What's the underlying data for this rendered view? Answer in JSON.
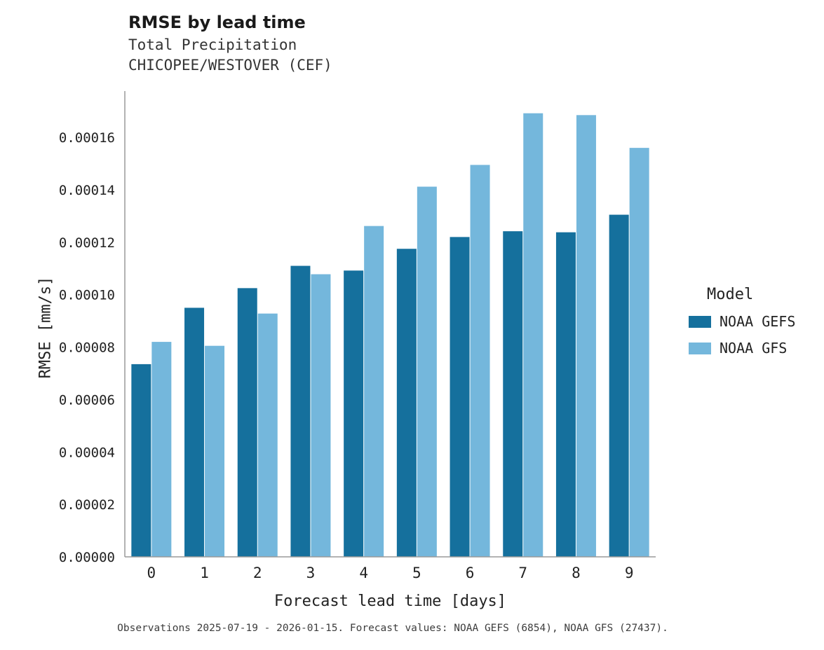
{
  "header": {
    "title": "RMSE by lead time",
    "subtitle1": "Total Precipitation",
    "subtitle2": "CHICOPEE/WESTOVER (CEF)"
  },
  "caption": "Observations 2025-07-19 - 2026-01-15. Forecast values: NOAA GEFS (6854), NOAA GFS (27437).",
  "legend": {
    "title": "Model",
    "items": [
      {
        "label": "NOAA GEFS",
        "color": "#15709d"
      },
      {
        "label": "NOAA GFS",
        "color": "#74b7dc"
      }
    ]
  },
  "chart_data": {
    "type": "bar",
    "title": "RMSE by lead time",
    "subtitle": "Total Precipitation — CHICOPEE/WESTOVER (CEF)",
    "xlabel": "Forecast lead time [days]",
    "ylabel": "RMSE [mm/s]",
    "categories": [
      "0",
      "1",
      "2",
      "3",
      "4",
      "5",
      "6",
      "7",
      "8",
      "9"
    ],
    "series": [
      {
        "name": "NOAA GEFS",
        "color": "#15709d",
        "values": [
          7.35e-05,
          9.5e-05,
          0.0001025,
          0.000111,
          0.0001092,
          0.0001175,
          0.000122,
          0.0001242,
          0.0001238,
          0.0001305
        ]
      },
      {
        "name": "NOAA GFS",
        "color": "#74b7dc",
        "values": [
          8.2e-05,
          8.05e-05,
          9.28e-05,
          0.0001078,
          0.0001262,
          0.0001412,
          0.0001495,
          0.0001692,
          0.0001685,
          0.000156
        ]
      }
    ],
    "ylim": [
      0,
      0.000175
    ],
    "yticks": [
      0,
      2e-05,
      4e-05,
      6e-05,
      8e-05,
      0.0001,
      0.00012,
      0.00014,
      0.00016
    ],
    "ytick_labels": [
      "0.00000",
      "0.00002",
      "0.00004",
      "0.00006",
      "0.00008",
      "0.00010",
      "0.00012",
      "0.00014",
      "0.00016"
    ],
    "grid": false,
    "legend_position": "right"
  }
}
